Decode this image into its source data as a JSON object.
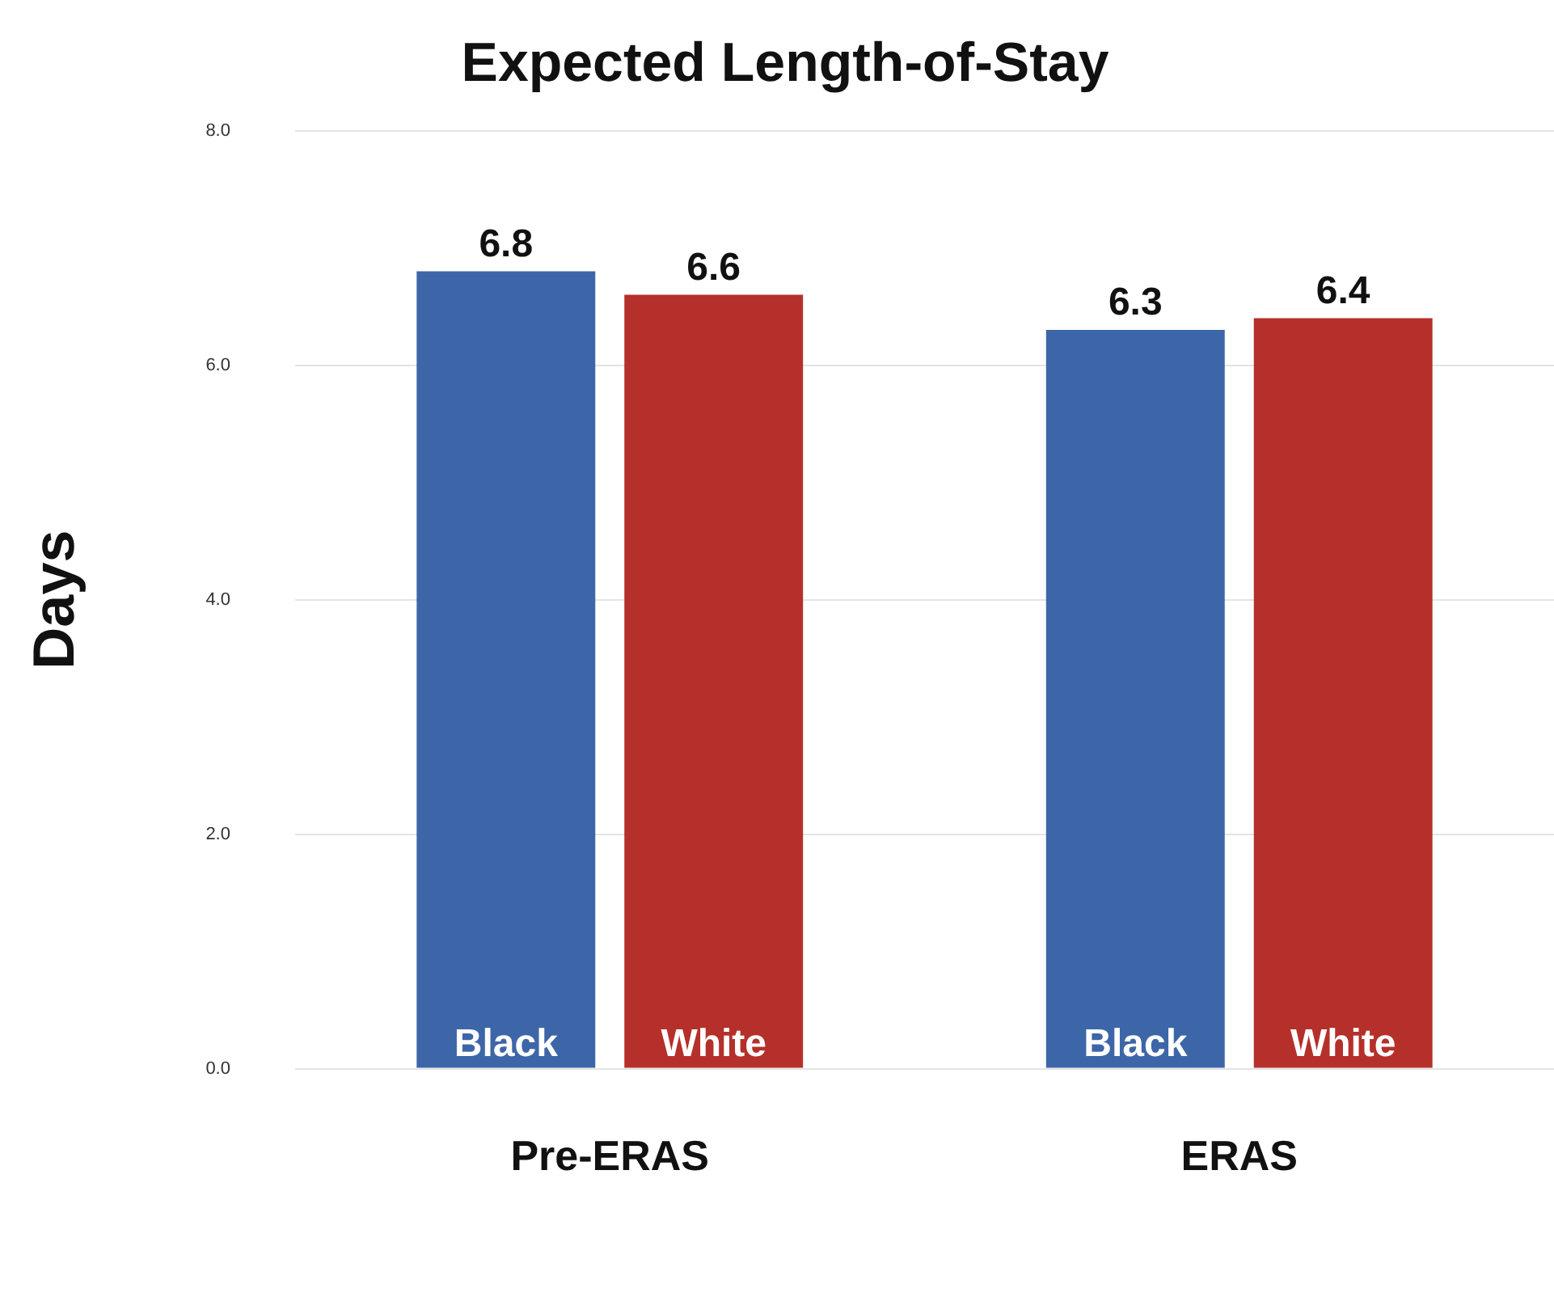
{
  "chart_data": {
    "type": "bar",
    "title": "Expected Length-of-Stay",
    "ylabel": "Days",
    "categories": [
      "Pre-ERAS",
      "ERAS"
    ],
    "series": [
      {
        "name": "Black",
        "color": "#3d66a8",
        "values": [
          6.8,
          6.3
        ]
      },
      {
        "name": "White",
        "color": "#b5302a",
        "values": [
          6.6,
          6.4
        ]
      }
    ],
    "ylim": [
      0,
      8
    ],
    "yticks": [
      {
        "value": 0,
        "label": "0.0"
      },
      {
        "value": 2,
        "label": "2.0"
      },
      {
        "value": 4,
        "label": "4.0"
      },
      {
        "value": 6,
        "label": "6.0"
      },
      {
        "value": 8,
        "label": "8.0"
      }
    ],
    "grid": "y",
    "legend": false,
    "data_labels": true
  }
}
